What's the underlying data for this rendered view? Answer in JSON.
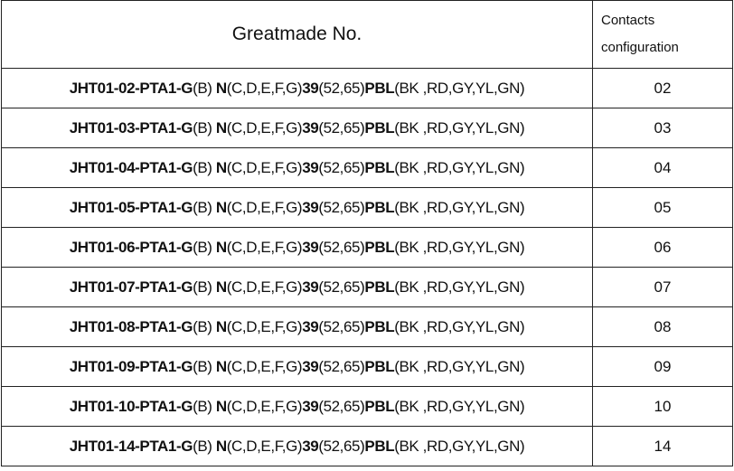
{
  "header": {
    "part_no": "Greatmade No.",
    "contacts_line1": "Contacts",
    "contacts_line2": "configuration"
  },
  "rows": [
    {
      "prefix": "JHT01-02-PTA1-G",
      "b": "(B) ",
      "n": "N",
      "ncodes": "(C,D,E,F,G)",
      "num": "39",
      "numcodes": "(52,65)",
      "pbl": "PBL",
      "colors": "(BK ,RD,GY,YL,GN)",
      "contacts": "02"
    },
    {
      "prefix": "JHT01-03-PTA1-G",
      "b": "(B) ",
      "n": "N",
      "ncodes": "(C,D,E,F,G)",
      "num": "39",
      "numcodes": "(52,65)",
      "pbl": "PBL",
      "colors": "(BK ,RD,GY,YL,GN)",
      "contacts": "03"
    },
    {
      "prefix": "JHT01-04-PTA1-G",
      "b": "(B) ",
      "n": "N",
      "ncodes": "(C,D,E,F,G)",
      "num": "39",
      "numcodes": "(52,65)",
      "pbl": "PBL",
      "colors": "(BK ,RD,GY,YL,GN)",
      "contacts": "04"
    },
    {
      "prefix": "JHT01-05-PTA1-G",
      "b": "(B) ",
      "n": "N",
      "ncodes": "(C,D,E,F,G)",
      "num": "39",
      "numcodes": "(52,65)",
      "pbl": "PBL",
      "colors": "(BK ,RD,GY,YL,GN)",
      "contacts": "05"
    },
    {
      "prefix": "JHT01-06-PTA1-G",
      "b": "(B) ",
      "n": "N",
      "ncodes": "(C,D,E,F,G)",
      "num": "39",
      "numcodes": "(52,65)",
      "pbl": "PBL",
      "colors": "(BK ,RD,GY,YL,GN)",
      "contacts": "06"
    },
    {
      "prefix": "JHT01-07-PTA1-G",
      "b": "(B) ",
      "n": "N",
      "ncodes": "(C,D,E,F,G)",
      "num": "39",
      "numcodes": "(52,65)",
      "pbl": "PBL",
      "colors": "(BK ,RD,GY,YL,GN)",
      "contacts": "07"
    },
    {
      "prefix": "JHT01-08-PTA1-G",
      "b": "(B) ",
      "n": "N",
      "ncodes": "(C,D,E,F,G)",
      "num": "39",
      "numcodes": "(52,65)",
      "pbl": "PBL",
      "colors": "(BK ,RD,GY,YL,GN)",
      "contacts": "08"
    },
    {
      "prefix": "JHT01-09-PTA1-G",
      "b": "(B) ",
      "n": "N",
      "ncodes": "(C,D,E,F,G)",
      "num": "39",
      "numcodes": "(52,65)",
      "pbl": "PBL",
      "colors": "(BK ,RD,GY,YL,GN)",
      "contacts": "09"
    },
    {
      "prefix": "JHT01-10-PTA1-G",
      "b": "(B) ",
      "n": "N",
      "ncodes": "(C,D,E,F,G)",
      "num": "39",
      "numcodes": "(52,65)",
      "pbl": "PBL",
      "colors": "(BK ,RD,GY,YL,GN)",
      "contacts": "10"
    },
    {
      "prefix": "JHT01-14-PTA1-G",
      "b": "(B) ",
      "n": "N",
      "ncodes": "(C,D,E,F,G)",
      "num": "39",
      "numcodes": "(52,65)",
      "pbl": "PBL",
      "colors": "(BK ,RD,GY,YL,GN)",
      "contacts": "14"
    }
  ]
}
